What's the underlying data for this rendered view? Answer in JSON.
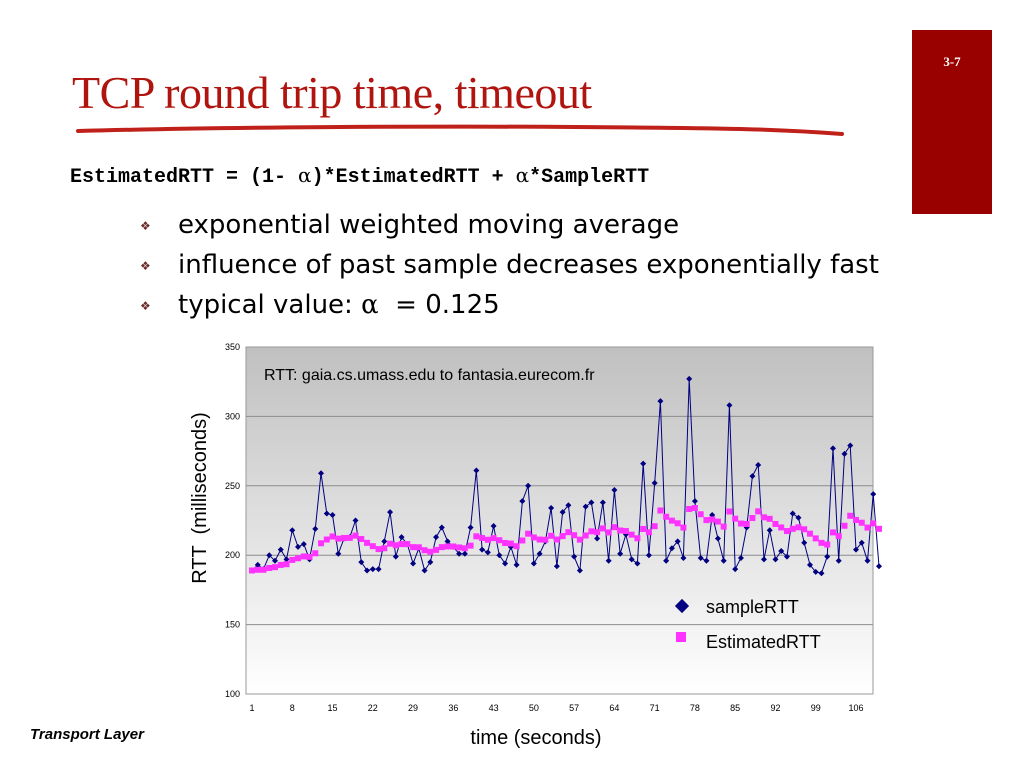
{
  "slide": {
    "title": "TCP round trip time, timeout",
    "page_number": "3-7",
    "formula": {
      "part1": "EstimatedRTT = (1- ",
      "alpha": "α",
      "part2": ")*EstimatedRTT + ",
      "part3": "*SampleRTT"
    },
    "bullets": [
      {
        "text": "exponential weighted moving average"
      },
      {
        "text": "influence of past sample decreases exponentially fast"
      },
      {
        "text": "typical value: ",
        "alpha": "α",
        "suffix": "  = 0.125"
      }
    ],
    "bullet_icon": "diamond-flower-icon",
    "footer": "Transport Layer"
  },
  "colors": {
    "title": "#b0140f",
    "page_box": "#990000",
    "sample_series": "#000080",
    "estimated_series": "#ff33ff",
    "plot_bg_top": "#c0c0c0",
    "plot_bg_bottom": "#ffffff"
  },
  "chart_data": {
    "type": "line",
    "annotation": "RTT: gaia.cs.umass.edu to fantasia.eurecom.fr",
    "xlabel": "time (seconds)",
    "ylabel": "RTT  (milliseconds)",
    "ylim": [
      100,
      350
    ],
    "yticks": [
      100,
      150,
      200,
      250,
      300,
      350
    ],
    "xticks": [
      1,
      8,
      15,
      22,
      29,
      36,
      43,
      50,
      57,
      64,
      71,
      78,
      85,
      92,
      99,
      106
    ],
    "xlim": [
      1,
      110
    ],
    "grid": true,
    "legend_position": "bottom-right",
    "series": [
      {
        "name": "sampleRTT",
        "marker": "diamond",
        "values": [
          189,
          193,
          190,
          200,
          196,
          204,
          197,
          218,
          206,
          208,
          197,
          219,
          259,
          230,
          229,
          201,
          212,
          213,
          225,
          195,
          189,
          190,
          190,
          210,
          231,
          199,
          213,
          208,
          194,
          205,
          189,
          195,
          213,
          220,
          210,
          206,
          201,
          201,
          220,
          261,
          204,
          202,
          221,
          200,
          194,
          206,
          193,
          239,
          250,
          194,
          201,
          210,
          234,
          192,
          231,
          236,
          199,
          189,
          235,
          238,
          212,
          238,
          196,
          247,
          201,
          215,
          197,
          194,
          266,
          200,
          252,
          311,
          196,
          205,
          210,
          198,
          327,
          239,
          198,
          196,
          229,
          212,
          196,
          308,
          190,
          198,
          220,
          257,
          265,
          197,
          218,
          197,
          203,
          199,
          230,
          227,
          209,
          193,
          188,
          187,
          199,
          277,
          196,
          273,
          279,
          204,
          209,
          196,
          244,
          192
        ]
      },
      {
        "name": "EstimatedRTT",
        "marker": "square",
        "values": [
          189,
          189.5,
          189.5,
          190.8,
          191.4,
          193,
          193.5,
          196.6,
          197.8,
          199.1,
          198.8,
          201.4,
          208.6,
          211.3,
          213.5,
          211.9,
          212.4,
          212.5,
          214.1,
          211.7,
          208.9,
          206.5,
          204.4,
          205,
          208.3,
          207.2,
          208,
          208,
          205.8,
          205.7,
          203.6,
          202.5,
          203.8,
          205.8,
          206.3,
          206.3,
          205.6,
          205,
          206.9,
          213.6,
          212.4,
          211.1,
          212.3,
          210.8,
          208.8,
          208.4,
          206.5,
          210.6,
          215.5,
          212.8,
          211.3,
          211.1,
          214,
          211.3,
          213.8,
          216.6,
          214.4,
          211.2,
          214.2,
          217.2,
          216.6,
          219.3,
          216.4,
          220.2,
          217.8,
          217.4,
          214.8,
          212.2,
          218.9,
          216.5,
          220.9,
          232.2,
          227.7,
          224.9,
          223,
          219.9,
          233.3,
          234,
          229.5,
          225.3,
          225.8,
          224.2,
          220.6,
          231.5,
          226.3,
          222.8,
          222.5,
          226.8,
          231.6,
          227.3,
          226.2,
          222.5,
          220,
          217.4,
          219,
          220.1,
          218.7,
          215.5,
          212.1,
          208.9,
          207.7,
          216.4,
          213.8,
          221.2,
          228.4,
          225.4,
          223.4,
          219.9,
          222.9,
          219
        ]
      }
    ]
  }
}
